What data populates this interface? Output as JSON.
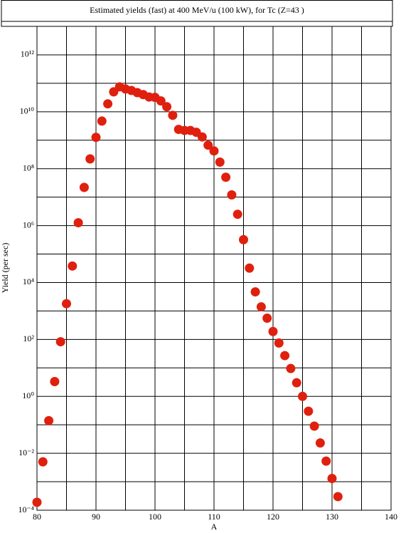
{
  "chart_data": {
    "type": "scatter",
    "title": "Estimated yields (fast) at 400 MeV/u (100 kW), for Tc (Z=43 )",
    "x_label": "A",
    "y_label": "Yield (per sec)",
    "log_y": true,
    "grid": true,
    "color": "#e0200e",
    "xlim": [
      80,
      140
    ],
    "xticks": [
      80,
      90,
      100,
      110,
      120,
      130,
      140
    ],
    "x_minor_ticks": [
      85,
      95,
      105,
      115,
      125,
      135
    ],
    "ylim": [
      0.0001,
      10000000000000
    ],
    "yticks": [
      {
        "value": 0.0001,
        "label": "10⁻⁴"
      },
      {
        "value": 0.01,
        "label": "10⁻²"
      },
      {
        "value": 1,
        "label": "10⁰"
      },
      {
        "value": 100,
        "label": "10²"
      },
      {
        "value": 10000,
        "label": "10⁴"
      },
      {
        "value": 1000000,
        "label": "10⁶"
      },
      {
        "value": 100000000,
        "label": "10⁸"
      },
      {
        "value": 10000000000,
        "label": "10¹⁰"
      },
      {
        "value": 1000000000000,
        "label": "10¹²"
      }
    ],
    "y_minor_ticks": [
      0.001,
      0.1,
      10,
      1000,
      100000,
      10000000,
      1000000000,
      100000000000,
      10000000000000
    ],
    "x": [
      80,
      81,
      82,
      83,
      84,
      85,
      86,
      87,
      88,
      89,
      90,
      91,
      92,
      93,
      94,
      95,
      96,
      97,
      98,
      99,
      100,
      101,
      102,
      103,
      104,
      105,
      106,
      107,
      108,
      109,
      110,
      111,
      112,
      113,
      114,
      115,
      116,
      117,
      118,
      119,
      120,
      121,
      122,
      123,
      124,
      125,
      126,
      127,
      128,
      129,
      130,
      131
    ],
    "values": [
      0.00019,
      0.005,
      0.14,
      3.3,
      83,
      1800,
      38000,
      1260000,
      22000000,
      220000000,
      1260000000,
      4700000000,
      19000000000,
      50000000000,
      75000000000,
      63000000000,
      56000000000,
      47000000000,
      40000000000,
      33000000000,
      32000000000,
      24000000000,
      15000000000,
      7500000000,
      2400000000,
      2200000000,
      2200000000,
      1900000000,
      1300000000,
      670000000,
      420000000,
      170000000,
      50000000,
      12000000,
      2500000,
      320000,
      32000,
      4700,
      1400,
      560,
      190,
      75,
      27,
      9.5,
      3,
      1,
      0.3,
      0.09,
      0.023,
      0.0053,
      0.0013,
      0.0003
    ]
  }
}
